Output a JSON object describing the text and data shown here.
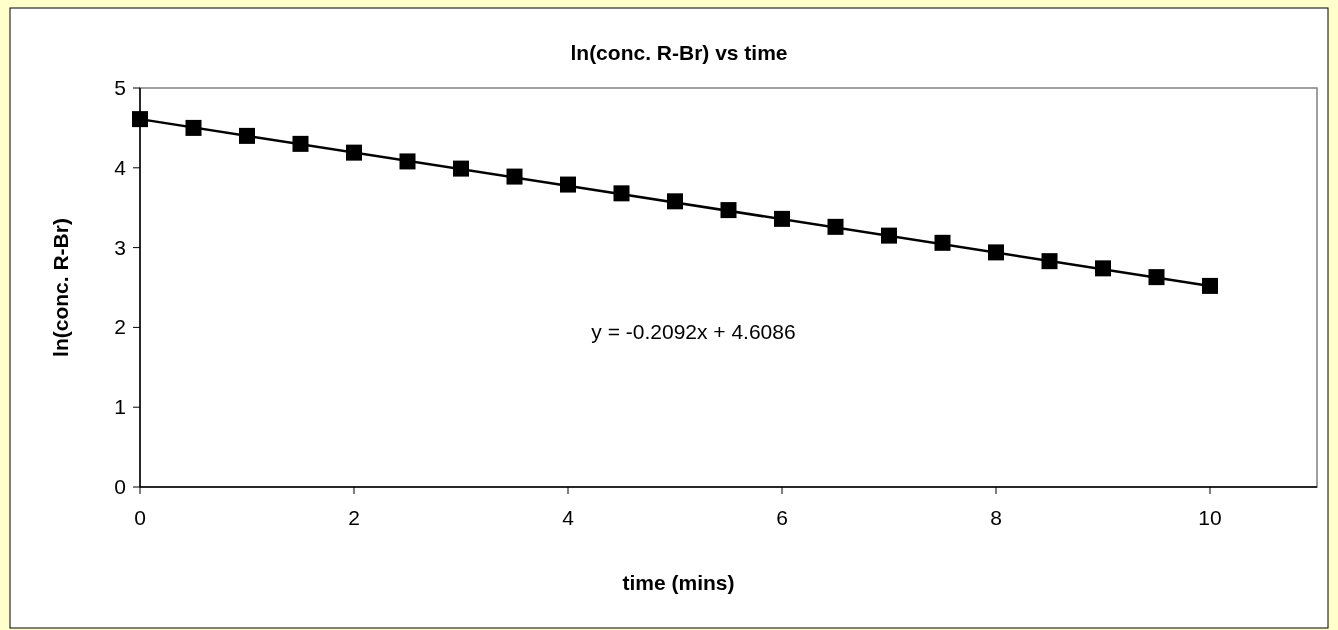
{
  "chart_data": {
    "type": "scatter",
    "title": "ln(conc. R-Br) vs time",
    "xlabel": "time (mins)",
    "ylabel": "ln(conc. R-Br)",
    "x": [
      0,
      0.5,
      1,
      1.5,
      2,
      2.5,
      3,
      3.5,
      4,
      4.5,
      5,
      5.5,
      6,
      6.5,
      7,
      7.5,
      8,
      8.5,
      9,
      9.5,
      10
    ],
    "series": [
      {
        "type": "scatter",
        "color": "#000000",
        "marker": "square",
        "values": [
          4.61,
          4.5,
          4.4,
          4.3,
          4.19,
          4.08,
          3.99,
          3.89,
          3.79,
          3.68,
          3.58,
          3.47,
          3.36,
          3.26,
          3.15,
          3.06,
          2.94,
          2.83,
          2.74,
          2.63,
          2.52
        ]
      },
      {
        "type": "line",
        "color": "#000000",
        "x": [
          0,
          10
        ],
        "values": [
          4.61,
          2.52
        ],
        "line_style": "solid",
        "marker": "none"
      }
    ],
    "annotations": [
      "y = -0.2092x + 4.6086"
    ],
    "xlim": [
      0,
      11
    ],
    "xticks": [
      0,
      2,
      4,
      6,
      8,
      10
    ],
    "ylim": [
      0,
      5
    ],
    "yticks": [
      0,
      1,
      2,
      3,
      4,
      5
    ],
    "grid": false
  }
}
